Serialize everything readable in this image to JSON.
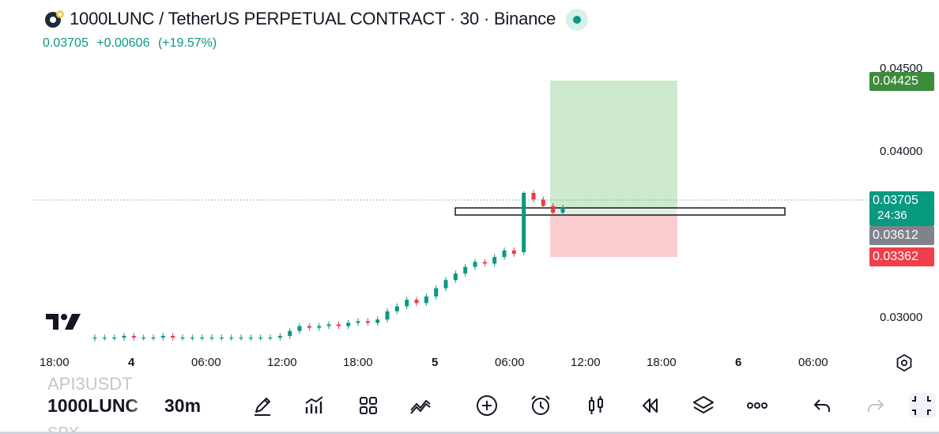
{
  "header": {
    "title": "1000LUNC / TetherUS PERPETUAL CONTRACT · 30 · Binance",
    "last_price": "0.03705",
    "change": "+0.00606",
    "change_pct": "(+19.57%)",
    "logo_icon": "lunc-coin-icon",
    "status_icon": "market-open-dot-icon"
  },
  "price_axis": {
    "ticks": [
      "0.04500",
      "0.04000",
      "0.03000"
    ],
    "tags": {
      "target": "0.04425",
      "current": "0.03705",
      "countdown": "24:36",
      "entry": "0.03612",
      "stop": "0.03362"
    }
  },
  "time_axis": {
    "labels": [
      "18:00",
      "4",
      "06:00",
      "12:00",
      "18:00",
      "5",
      "06:00",
      "12:00",
      "18:00",
      "6",
      "06:00"
    ]
  },
  "chart_data": {
    "type": "candlestick",
    "symbol": "1000LUNCUSDT.P",
    "interval": "30",
    "price_range": [
      0.0285,
      0.0452
    ],
    "series_close_approx": [
      0.0287,
      0.0287,
      0.0287,
      0.0288,
      0.0287,
      0.0287,
      0.0287,
      0.0288,
      0.0287,
      0.0287,
      0.0287,
      0.0287,
      0.0287,
      0.0287,
      0.0287,
      0.0287,
      0.0287,
      0.0287,
      0.0287,
      0.0288,
      0.0291,
      0.0294,
      0.0293,
      0.0294,
      0.0295,
      0.0294,
      0.0296,
      0.0297,
      0.0296,
      0.0298,
      0.0303,
      0.0306,
      0.031,
      0.0308,
      0.0312,
      0.0317,
      0.0322,
      0.0326,
      0.033,
      0.0333,
      0.0332,
      0.0336,
      0.034,
      0.0338,
      0.0375,
      0.0371,
      0.0367,
      0.0363,
      0.0366
    ],
    "position": {
      "side": "long",
      "entry": 0.03612,
      "target": 0.04425,
      "stop": 0.03362
    },
    "horizontal_zone": [
      0.03585,
      0.03635
    ],
    "colors": {
      "up": "#089981",
      "down": "#f23645",
      "profit_zone": "#4caf50",
      "loss_zone": "#f23645"
    }
  },
  "toolbar": {
    "symbol": "1000LUNC",
    "interval": "30m",
    "ghost_prev_symbol": "API3USDT",
    "ghost_next_symbol": "SPX",
    "icons": [
      "draw-pen-icon",
      "indicators-icon",
      "layout-grid-icon",
      "compare-icon",
      "add-icon",
      "alert-icon",
      "chart-type-icon",
      "replay-icon",
      "layers-icon",
      "more-icon",
      "undo-icon",
      "redo-icon",
      "fullscreen-icon"
    ]
  },
  "colors": {
    "accent": "#089981",
    "text": "#131722"
  }
}
